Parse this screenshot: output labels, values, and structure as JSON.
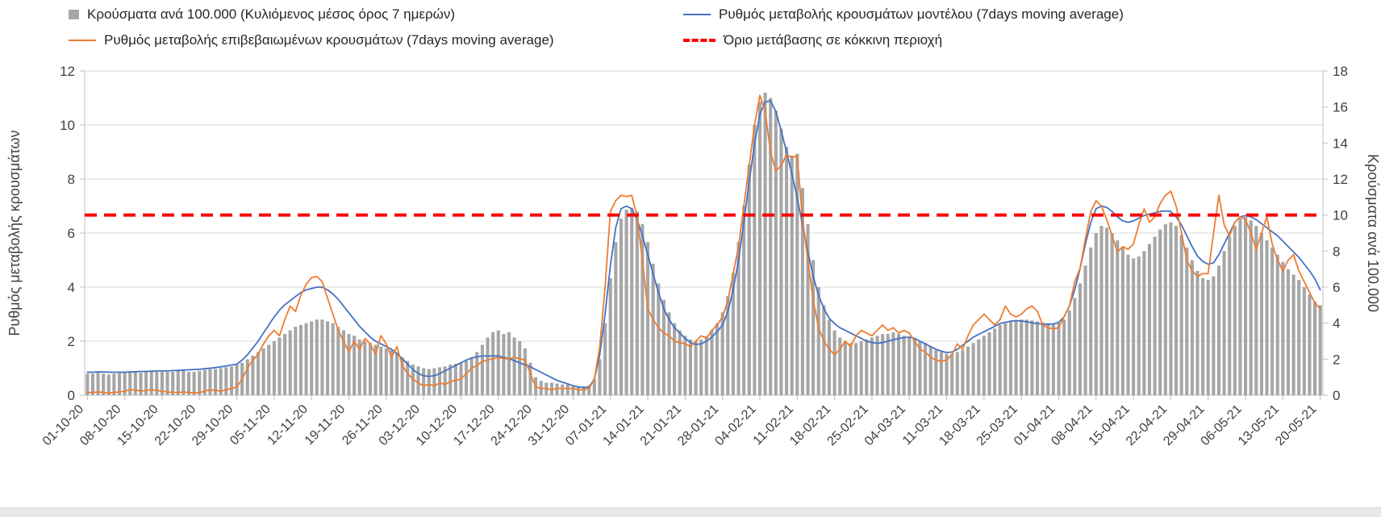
{
  "legend": {
    "items": [
      {
        "label": "Κρούσματα ανά 100.000 (Κυλιόμενος μέσος όρος 7 ημερών)",
        "type": "bar",
        "color": "#a6a6a6"
      },
      {
        "label": "Ρυθμός μεταβολής κρουσμάτων μοντέλου (7days moving average)",
        "type": "line",
        "color": "#4472c4"
      },
      {
        "label": "Ρυθμός μεταβολής επιβεβαιωμένων κρουσμάτων (7days moving average)",
        "type": "line",
        "color": "#ed7d31"
      },
      {
        "label": "Όριο μετάβασης σε κόκκινη περιοχή",
        "type": "dashed-line",
        "color": "#ff0000"
      }
    ]
  },
  "chart_data": {
    "type": "combo-bar-line",
    "axes": {
      "left": {
        "title": "Ρυθμός μεταβολής κρουσμάτων",
        "min": 0,
        "max": 12,
        "step": 2
      },
      "right": {
        "title": "Κρούσματα ανά 100.000",
        "min": 0,
        "max": 18,
        "step": 2
      },
      "x_tick_labels": [
        "01-10-20",
        "08-10-20",
        "15-10-20",
        "22-10-20",
        "29-10-20",
        "05-11-20",
        "12-11-20",
        "19-11-20",
        "26-11-20",
        "03-12-20",
        "10-12-20",
        "17-12-20",
        "24-12-20",
        "31-12-20",
        "07-01-21",
        "14-01-21",
        "21-01-21",
        "28-01-21",
        "04-02-21",
        "11-02-21",
        "18-02-21",
        "25-02-21",
        "04-03-21",
        "11-03-21",
        "18-03-21",
        "25-03-21",
        "01-04-21",
        "08-04-21",
        "15-04-21",
        "22-04-21",
        "29-04-21",
        "06-05-21",
        "13-05-21",
        "20-05-21"
      ],
      "grid": true
    },
    "threshold": {
      "label": "Όριο μετάβασης σε κόκκινη περιοχή",
      "axis": "right",
      "value": 10,
      "color": "#ff0000"
    },
    "series": [
      {
        "name": "Κρούσματα ανά 100.000 (Κυλιόμενος μέσος όρος 7 ημερών)",
        "type": "bar",
        "axis": "right",
        "color": "#a6a6a6",
        "values": [
          1.2,
          1.2,
          1.25,
          1.2,
          1.15,
          1.2,
          1.25,
          1.25,
          1.3,
          1.3,
          1.25,
          1.3,
          1.3,
          1.3,
          1.3,
          1.3,
          1.3,
          1.35,
          1.35,
          1.3,
          1.3,
          1.35,
          1.4,
          1.45,
          1.45,
          1.5,
          1.55,
          1.6,
          1.7,
          1.8,
          2.0,
          2.2,
          2.4,
          2.6,
          2.8,
          3.0,
          3.2,
          3.4,
          3.6,
          3.8,
          3.9,
          4.0,
          4.1,
          4.2,
          4.2,
          4.1,
          4.0,
          3.8,
          3.6,
          3.4,
          3.3,
          3.1,
          3.0,
          2.9,
          2.8,
          2.7,
          2.6,
          2.5,
          2.3,
          2.1,
          1.9,
          1.7,
          1.6,
          1.5,
          1.45,
          1.5,
          1.55,
          1.6,
          1.7,
          1.75,
          1.8,
          1.9,
          2.1,
          2.4,
          2.8,
          3.2,
          3.5,
          3.6,
          3.4,
          3.5,
          3.2,
          3.0,
          2.6,
          1.8,
          1.0,
          0.8,
          0.7,
          0.7,
          0.65,
          0.6,
          0.6,
          0.55,
          0.5,
          0.5,
          0.55,
          0.9,
          2.0,
          4.0,
          6.5,
          8.5,
          9.8,
          10.3,
          10.4,
          10.2,
          9.5,
          8.5,
          7.3,
          6.2,
          5.3,
          4.6,
          4.0,
          3.6,
          3.3,
          3.1,
          3.0,
          3.1,
          3.3,
          3.6,
          4.0,
          4.6,
          5.5,
          6.8,
          8.5,
          10.5,
          12.8,
          15.0,
          16.3,
          16.8,
          16.5,
          15.8,
          14.8,
          13.8,
          13.3,
          13.4,
          11.5,
          9.5,
          7.5,
          6.0,
          5.0,
          4.2,
          3.6,
          3.2,
          3.0,
          2.9,
          2.9,
          3.0,
          3.1,
          3.2,
          3.3,
          3.4,
          3.4,
          3.5,
          3.4,
          3.3,
          3.2,
          3.1,
          3.0,
          2.9,
          2.7,
          2.5,
          2.4,
          2.3,
          2.3,
          2.4,
          2.5,
          2.7,
          2.9,
          3.1,
          3.3,
          3.5,
          3.7,
          3.9,
          4.0,
          4.1,
          4.15,
          4.2,
          4.2,
          4.15,
          4.1,
          4.05,
          4.0,
          3.95,
          4.0,
          4.2,
          4.7,
          5.4,
          6.2,
          7.2,
          8.2,
          9.0,
          9.4,
          9.3,
          9.0,
          8.6,
          8.2,
          7.8,
          7.6,
          7.7,
          8.0,
          8.4,
          8.8,
          9.2,
          9.5,
          9.6,
          9.4,
          8.9,
          8.2,
          7.5,
          6.9,
          6.5,
          6.4,
          6.6,
          7.2,
          8.0,
          8.8,
          9.4,
          9.8,
          9.9,
          9.7,
          9.4,
          9.0,
          8.6,
          8.2,
          7.8,
          7.4,
          7.0,
          6.7,
          6.4,
          6.0,
          5.6,
          5.2,
          5.0
        ]
      },
      {
        "name": "Ρυθμός μεταβολής κρουσμάτων μοντέλου (7days moving average)",
        "type": "line",
        "axis": "left",
        "color": "#4472c4",
        "values": [
          0.85,
          0.85,
          0.86,
          0.86,
          0.85,
          0.85,
          0.85,
          0.85,
          0.86,
          0.87,
          0.88,
          0.88,
          0.89,
          0.9,
          0.9,
          0.9,
          0.91,
          0.92,
          0.93,
          0.94,
          0.95,
          0.96,
          0.98,
          1.0,
          1.02,
          1.05,
          1.08,
          1.12,
          1.15,
          1.3,
          1.5,
          1.75,
          2.0,
          2.3,
          2.6,
          2.9,
          3.15,
          3.35,
          3.5,
          3.65,
          3.8,
          3.9,
          3.95,
          4.0,
          4.0,
          3.9,
          3.75,
          3.55,
          3.3,
          3.05,
          2.8,
          2.55,
          2.35,
          2.15,
          2.0,
          1.9,
          1.8,
          1.7,
          1.55,
          1.35,
          1.15,
          0.95,
          0.8,
          0.72,
          0.7,
          0.72,
          0.8,
          0.9,
          1.0,
          1.1,
          1.2,
          1.3,
          1.38,
          1.42,
          1.45,
          1.45,
          1.45,
          1.45,
          1.4,
          1.35,
          1.28,
          1.2,
          1.12,
          1.05,
          0.95,
          0.85,
          0.75,
          0.65,
          0.55,
          0.48,
          0.42,
          0.35,
          0.3,
          0.28,
          0.3,
          0.6,
          1.5,
          3.0,
          4.8,
          6.2,
          6.9,
          7.0,
          6.9,
          6.5,
          5.9,
          5.2,
          4.5,
          3.8,
          3.2,
          2.8,
          2.5,
          2.3,
          2.1,
          1.95,
          1.88,
          1.9,
          2.0,
          2.15,
          2.35,
          2.6,
          3.1,
          3.9,
          5.0,
          6.4,
          7.9,
          9.3,
          10.4,
          10.85,
          10.9,
          10.5,
          9.8,
          9.0,
          8.2,
          7.3,
          6.3,
          5.3,
          4.4,
          3.7,
          3.2,
          2.85,
          2.65,
          2.5,
          2.4,
          2.3,
          2.2,
          2.1,
          2.0,
          1.95,
          1.92,
          1.95,
          2.0,
          2.05,
          2.1,
          2.13,
          2.15,
          2.1,
          2.0,
          1.9,
          1.8,
          1.7,
          1.63,
          1.58,
          1.6,
          1.7,
          1.85,
          2.0,
          2.15,
          2.25,
          2.35,
          2.45,
          2.55,
          2.65,
          2.7,
          2.74,
          2.76,
          2.75,
          2.72,
          2.68,
          2.65,
          2.63,
          2.62,
          2.64,
          2.7,
          2.9,
          3.3,
          3.9,
          4.7,
          5.6,
          6.4,
          6.9,
          7.0,
          6.95,
          6.8,
          6.6,
          6.45,
          6.4,
          6.45,
          6.55,
          6.65,
          6.7,
          6.75,
          6.8,
          6.82,
          6.8,
          6.6,
          6.3,
          5.9,
          5.5,
          5.15,
          4.95,
          4.85,
          4.9,
          5.2,
          5.6,
          6.0,
          6.4,
          6.6,
          6.65,
          6.6,
          6.5,
          6.35,
          6.2,
          6.05,
          5.9,
          5.7,
          5.5,
          5.3,
          5.1,
          4.85,
          4.6,
          4.3,
          3.9
        ]
      },
      {
        "name": "Ρυθμός μεταβολής επιβεβαιωμένων κρουσμάτων (7days moving average)",
        "type": "line",
        "axis": "left",
        "color": "#ed7d31",
        "values": [
          0.1,
          0.1,
          0.12,
          0.1,
          0.08,
          0.1,
          0.12,
          0.15,
          0.2,
          0.2,
          0.15,
          0.18,
          0.2,
          0.18,
          0.15,
          0.12,
          0.1,
          0.1,
          0.12,
          0.1,
          0.08,
          0.1,
          0.15,
          0.2,
          0.18,
          0.15,
          0.2,
          0.25,
          0.3,
          0.6,
          1.0,
          1.3,
          1.5,
          1.9,
          2.2,
          2.4,
          2.2,
          2.8,
          3.3,
          3.1,
          3.7,
          4.1,
          4.35,
          4.4,
          4.2,
          3.6,
          3.0,
          2.4,
          2.0,
          1.6,
          2.0,
          1.7,
          2.1,
          1.9,
          1.5,
          2.2,
          1.9,
          1.4,
          1.8,
          1.1,
          0.8,
          0.6,
          0.45,
          0.35,
          0.4,
          0.35,
          0.45,
          0.4,
          0.5,
          0.55,
          0.6,
          0.8,
          1.0,
          1.1,
          1.25,
          1.3,
          1.35,
          1.4,
          1.35,
          1.35,
          1.4,
          1.35,
          1.3,
          0.8,
          0.3,
          0.25,
          0.25,
          0.2,
          0.25,
          0.25,
          0.25,
          0.25,
          0.2,
          0.2,
          0.25,
          0.6,
          1.8,
          4.0,
          6.8,
          7.2,
          7.4,
          7.35,
          7.4,
          6.6,
          5.0,
          3.2,
          2.8,
          2.5,
          2.3,
          2.2,
          2.0,
          1.95,
          1.9,
          1.8,
          2.0,
          2.2,
          2.1,
          2.4,
          2.6,
          2.9,
          3.5,
          4.5,
          5.5,
          7.0,
          8.5,
          10.0,
          11.1,
          10.5,
          9.0,
          8.3,
          8.5,
          8.9,
          8.8,
          8.85,
          6.5,
          5.0,
          3.5,
          2.5,
          2.0,
          1.7,
          1.5,
          1.7,
          2.0,
          1.8,
          2.2,
          2.4,
          2.3,
          2.2,
          2.4,
          2.6,
          2.4,
          2.5,
          2.3,
          2.4,
          2.3,
          2.0,
          1.7,
          1.6,
          1.4,
          1.3,
          1.25,
          1.3,
          1.5,
          1.9,
          1.7,
          2.2,
          2.6,
          2.8,
          3.0,
          2.8,
          2.6,
          2.8,
          3.3,
          3.0,
          2.9,
          3.0,
          3.2,
          3.3,
          3.1,
          2.6,
          2.5,
          2.45,
          2.5,
          2.9,
          3.3,
          4.2,
          4.7,
          5.8,
          6.8,
          7.2,
          7.0,
          6.5,
          5.9,
          5.3,
          5.5,
          5.4,
          5.6,
          6.3,
          6.9,
          6.4,
          6.6,
          7.1,
          7.4,
          7.55,
          7.0,
          6.0,
          5.0,
          4.6,
          4.4,
          4.5,
          4.5,
          6.0,
          7.4,
          6.3,
          5.9,
          6.4,
          6.6,
          6.5,
          6.0,
          5.4,
          6.0,
          6.6,
          5.6,
          5.0,
          4.6,
          5.0,
          5.2,
          4.6,
          4.2,
          3.8,
          3.4,
          3.2
        ]
      }
    ]
  }
}
